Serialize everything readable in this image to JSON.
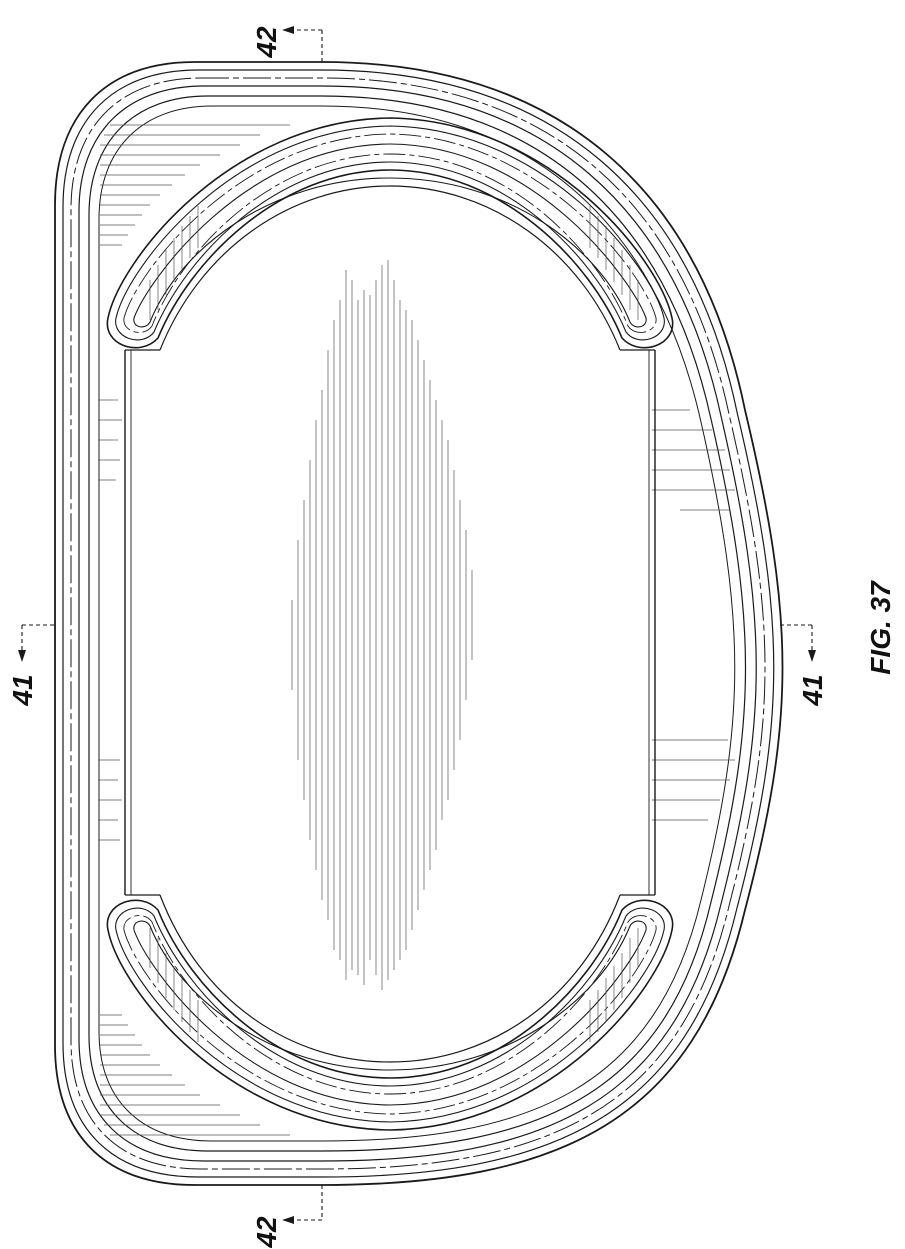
{
  "figure": {
    "caption": "FIG. 37"
  },
  "section_markers": {
    "top": "42",
    "bottom": "42",
    "left": "41",
    "right": "41"
  },
  "colors": {
    "line": "#1a1a1a",
    "hatch": "#555555",
    "background": "#ffffff"
  }
}
